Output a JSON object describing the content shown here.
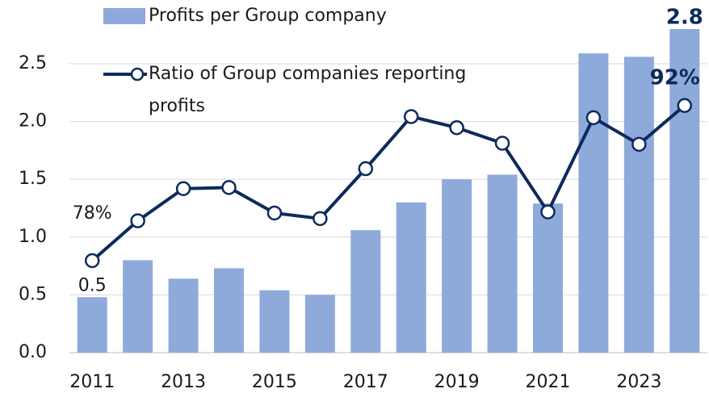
{
  "chart_data": {
    "type": "bar",
    "categories": [
      "2011",
      null,
      "2013",
      null,
      "2015",
      null,
      "2017",
      null,
      "2019",
      null,
      "2021",
      null,
      "2023",
      null
    ],
    "series": [
      {
        "name": "Profits per Group company",
        "color": "#8eaadb",
        "values": [
          0.48,
          0.8,
          0.64,
          0.73,
          0.54,
          0.5,
          1.06,
          1.3,
          1.5,
          1.54,
          1.29,
          2.59,
          2.56,
          2.8
        ],
        "value_labels": [
          "0.5",
          null,
          null,
          null,
          null,
          null,
          null,
          null,
          null,
          null,
          null,
          null,
          null,
          "2.8"
        ]
      },
      {
        "name": "Ratio of Group companies reporting profits",
        "type": "line",
        "axis": "y2",
        "color": "#0c2a5b",
        "values": [
          78,
          81.6,
          84.5,
          84.6,
          82.3,
          81.8,
          86.3,
          91.0,
          90.0,
          88.6,
          82.4,
          90.9,
          88.5,
          92
        ],
        "value_labels": [
          "78%",
          null,
          null,
          null,
          null,
          null,
          null,
          null,
          null,
          null,
          null,
          null,
          null,
          "92%"
        ]
      }
    ],
    "ylim": [
      0,
      2.8
    ],
    "yticks": [
      {
        "value": 0,
        "label": "0.0"
      },
      0.5,
      {
        "value": 1,
        "label": "1.0"
      },
      1.5,
      {
        "value": 2,
        "label": "2.0"
      },
      2.5
    ],
    "y2lim": [
      69.7,
      98.9
    ],
    "grid": true
  }
}
